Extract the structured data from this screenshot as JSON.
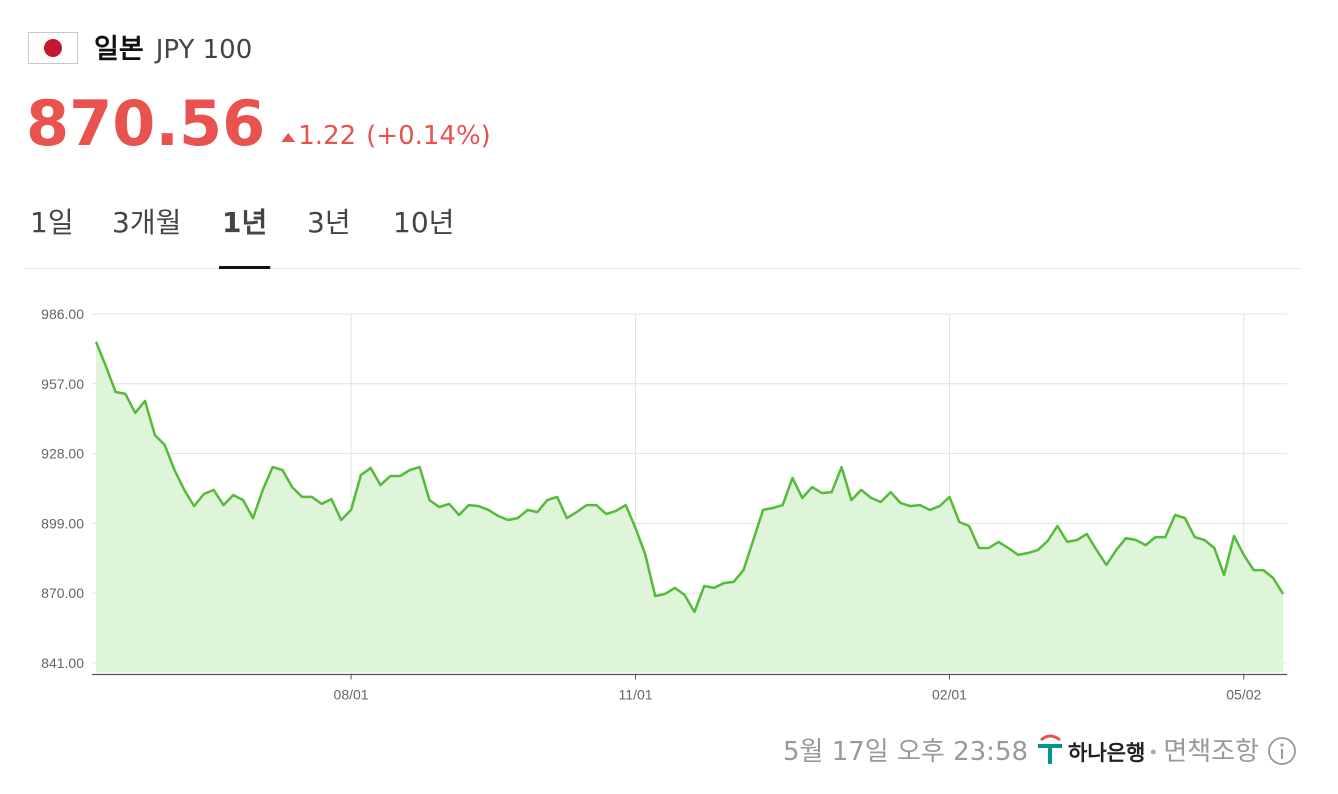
{
  "header": {
    "country": "일본",
    "currency": "JPY 100",
    "price": "870.56",
    "change": "1.22",
    "change_pct": "(+0.14%)"
  },
  "tabs": [
    {
      "label": "1일"
    },
    {
      "label": "3개월"
    },
    {
      "label": "1년",
      "selected": true
    },
    {
      "label": "3년"
    },
    {
      "label": "10년"
    }
  ],
  "chart_data": {
    "type": "line",
    "categories": [
      null,
      null,
      null,
      null,
      null,
      null,
      null,
      null,
      null,
      null,
      null,
      null,
      null,
      null,
      null,
      null,
      null,
      null,
      null,
      null,
      null,
      null,
      null,
      null,
      null,
      null,
      "08/01",
      null,
      null,
      null,
      null,
      null,
      null,
      null,
      null,
      null,
      null,
      null,
      null,
      null,
      null,
      null,
      null,
      null,
      null,
      null,
      null,
      null,
      null,
      null,
      null,
      null,
      null,
      null,
      null,
      "11/01",
      null,
      null,
      null,
      null,
      null,
      null,
      null,
      null,
      null,
      null,
      null,
      null,
      null,
      null,
      null,
      null,
      null,
      null,
      null,
      null,
      null,
      null,
      null,
      null,
      null,
      null,
      null,
      null,
      null,
      null,
      null,
      "02/01",
      null,
      null,
      null,
      null,
      null,
      null,
      null,
      null,
      null,
      null,
      null,
      null,
      null,
      null,
      null,
      null,
      null,
      null,
      null,
      null,
      null,
      null,
      null,
      null,
      null,
      null,
      null,
      null,
      null,
      "05/02",
      null,
      null,
      null,
      null
    ],
    "series": [
      {
        "color": "#55bb3a",
        "fill": "#dff5da",
        "values": [
          974.4,
          964.4,
          953.6,
          952.8,
          944.9,
          949.9,
          935.7,
          931.6,
          921.2,
          912.9,
          906.2,
          911.2,
          912.9,
          906.6,
          910.8,
          908.7,
          901.2,
          912.9,
          922.4,
          921.2,
          914.1,
          910.0,
          910.0,
          907.1,
          909.1,
          900.4,
          904.6,
          919.1,
          922.0,
          914.9,
          918.7,
          918.7,
          921.2,
          922.4,
          908.7,
          905.8,
          907.1,
          902.5,
          906.6,
          906.2,
          904.6,
          902.1,
          900.4,
          901.2,
          904.6,
          903.7,
          908.7,
          910.0,
          901.2,
          903.7,
          906.6,
          906.6,
          902.9,
          904.2,
          906.6,
          897.1,
          885.9,
          868.8,
          869.7,
          872.2,
          869.3,
          862.2,
          873.0,
          872.2,
          874.2,
          874.7,
          879.6,
          892.1,
          904.6,
          905.4,
          906.6,
          917.9,
          909.6,
          914.1,
          911.6,
          912.0,
          922.4,
          908.7,
          912.9,
          909.6,
          907.9,
          912.0,
          907.5,
          906.2,
          906.6,
          904.6,
          906.2,
          910.0,
          899.6,
          897.9,
          888.8,
          888.8,
          891.3,
          888.8,
          885.9,
          886.7,
          887.9,
          891.7,
          897.9,
          891.3,
          892.1,
          894.6,
          887.9,
          881.7,
          887.9,
          892.9,
          892.1,
          890.0,
          893.3,
          893.3,
          902.5,
          901.2,
          893.3,
          892.1,
          888.8,
          877.6,
          893.8,
          885.9,
          879.6,
          879.6,
          876.3,
          869.7
        ]
      }
    ],
    "ylim": [
      841,
      986
    ],
    "yticks": [
      {
        "value": 841,
        "label": "841.00"
      },
      {
        "value": 870,
        "label": "870.00"
      },
      {
        "value": 899,
        "label": "899.00"
      },
      {
        "value": 928,
        "label": "928.00"
      },
      {
        "value": 957,
        "label": "957.00"
      },
      {
        "value": 986,
        "label": "986.00"
      }
    ],
    "grid": true
  },
  "footer": {
    "timestamp": "5월 17일 오후 23:58",
    "bank": "하나은행",
    "disclaimer": "면책조항"
  }
}
